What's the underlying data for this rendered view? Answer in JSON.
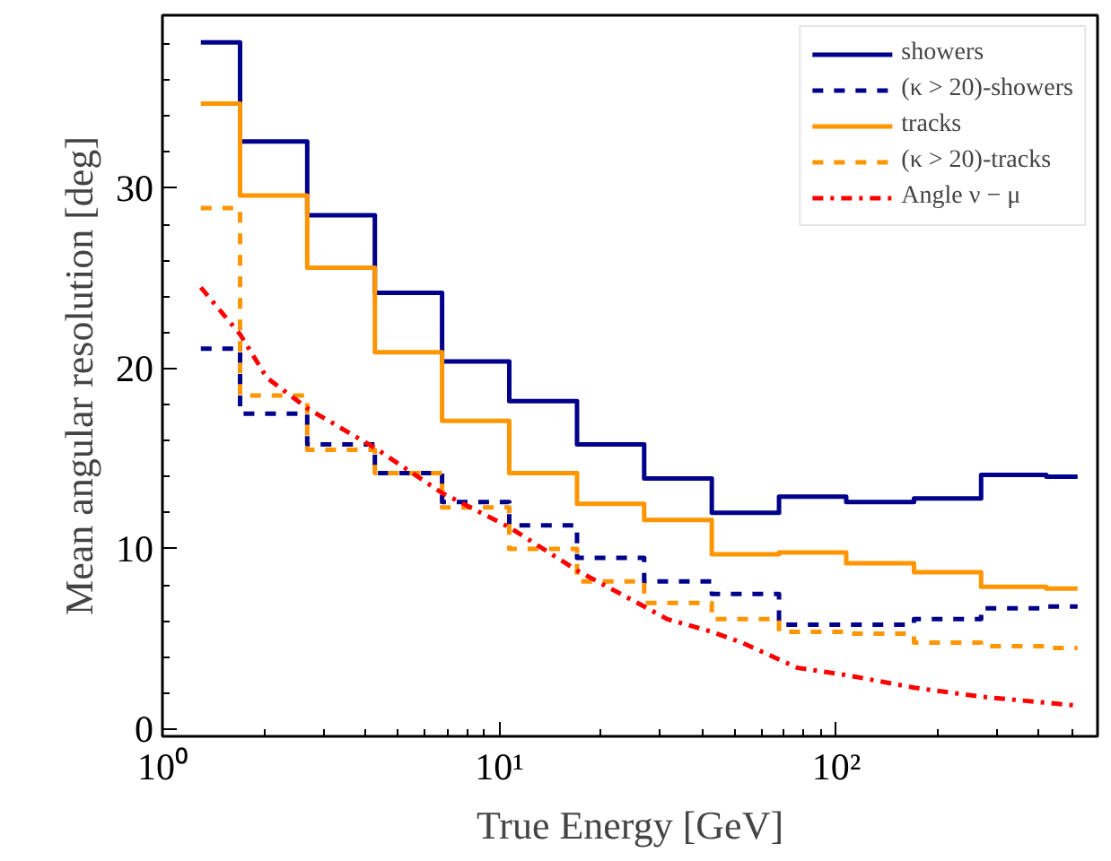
{
  "chart_data": {
    "type": "step",
    "xlabel": "True Energy [GeV]",
    "ylabel": "Mean angular resolution [deg]",
    "log": "x",
    "xlim": [
      1,
      596
    ],
    "ylim": [
      -0.4,
      39.6
    ],
    "xticks": [
      {
        "value": 1,
        "label": "10⁰"
      },
      {
        "value": 10,
        "label": "10¹"
      },
      {
        "value": 100,
        "label": "10²"
      }
    ],
    "yticks": [
      0,
      10,
      20,
      30
    ],
    "grid": false,
    "legend": "top right",
    "series": [
      {
        "name": "showers",
        "color": "#00008b",
        "line_style": "solid",
        "x": [
          1.3,
          1.7,
          2.69,
          4.27,
          6.76,
          10.7,
          17.0,
          26.9,
          42.7,
          67.6,
          107,
          170,
          269,
          420,
          520
        ],
        "values": [
          38.1,
          32.6,
          28.5,
          24.2,
          20.4,
          18.2,
          15.8,
          13.9,
          12.0,
          12.9,
          12.6,
          12.8,
          14.1,
          14.0,
          14.0
        ]
      },
      {
        "name": "(κ > 20)-showers",
        "color": "#00008b",
        "line_style": "dashed",
        "x": [
          1.3,
          1.7,
          2.69,
          4.27,
          6.76,
          10.7,
          17.0,
          26.9,
          42.7,
          67.6,
          107,
          170,
          269,
          420,
          520
        ],
        "values": [
          21.1,
          17.5,
          15.8,
          14.2,
          12.6,
          11.3,
          9.5,
          8.2,
          7.5,
          5.8,
          5.8,
          6.1,
          6.7,
          6.8,
          6.8
        ]
      },
      {
        "name": "tracks",
        "color": "#ff9500",
        "line_style": "solid",
        "x": [
          1.3,
          1.7,
          2.69,
          4.27,
          6.76,
          10.7,
          17.0,
          26.9,
          42.7,
          67.6,
          107,
          170,
          269,
          420,
          520
        ],
        "values": [
          34.7,
          29.6,
          25.6,
          20.9,
          17.1,
          14.2,
          12.5,
          11.6,
          9.7,
          9.8,
          9.2,
          8.7,
          7.9,
          7.8,
          7.8
        ]
      },
      {
        "name": "(κ > 20)-tracks",
        "color": "#ff9500",
        "line_style": "dashed",
        "x": [
          1.3,
          1.7,
          2.69,
          4.27,
          6.76,
          10.7,
          17.0,
          26.9,
          42.7,
          67.6,
          107,
          170,
          269,
          420,
          520
        ],
        "values": [
          28.9,
          18.5,
          15.5,
          14.2,
          12.3,
          10.0,
          8.2,
          7.0,
          6.1,
          5.4,
          5.3,
          4.8,
          4.6,
          4.5,
          4.5
        ]
      },
      {
        "name": "Angle ν − μ",
        "type": "line",
        "color": "#ff0000",
        "line_style": "dashdot",
        "x": [
          1.3,
          1.7,
          2.04,
          2.69,
          4.27,
          6.76,
          10.7,
          17.0,
          26.9,
          31.5,
          42.7,
          52.4,
          76.8,
          107,
          170,
          269,
          520
        ],
        "values": [
          24.5,
          21.9,
          19.5,
          17.8,
          15.6,
          13.1,
          11.2,
          8.8,
          6.8,
          6.1,
          5.4,
          4.8,
          3.4,
          3.0,
          2.3,
          1.8,
          1.3
        ]
      }
    ]
  }
}
